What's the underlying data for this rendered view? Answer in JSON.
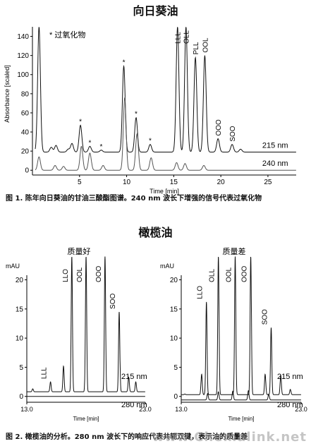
{
  "page": {
    "title1": "向日葵油",
    "caption1": "图 1.  陈年向日葵油的甘油三酸酯图谱。240 nm 波长下增强的信号代表过氧化物",
    "title2": "橄榄油",
    "caption2": "图 2.  橄榄油的分析。280 nm 波长下的响应代表共轭双键，表示油的质量差",
    "watermark": "www.Chemalink.net"
  },
  "chart_data": [
    {
      "type": "line",
      "ylabel": "Absorbance [scaled]",
      "xlabel": "Time [min]",
      "xlim": [
        0,
        28
      ],
      "ylim": [
        -5,
        150
      ],
      "xticks": [
        5,
        10,
        15,
        20,
        25
      ],
      "yticks": [
        0,
        20,
        40,
        60,
        80,
        100,
        120,
        140
      ],
      "legend_note": "* 过氧化物",
      "peaks": [
        {
          "label": "LLL",
          "x": 15.4
        },
        {
          "label": "OLL",
          "x": 16.3
        },
        {
          "label": "PLL",
          "x": 17.3
        },
        {
          "label": "OOL",
          "x": 18.3
        },
        {
          "label": "OOO",
          "x": 19.7
        },
        {
          "label": "SOO",
          "x": 21.2
        }
      ],
      "series": [
        {
          "name": "215 nm",
          "baseline": 19,
          "peaks_xy": [
            [
              0.7,
              150
            ],
            [
              2.0,
              24
            ],
            [
              2.5,
              26
            ],
            [
              3.8,
              22
            ],
            [
              4.2,
              28
            ],
            [
              5.1,
              47
            ],
            [
              6.1,
              25
            ],
            [
              7.3,
              21
            ],
            [
              9.7,
              109
            ],
            [
              11.0,
              55
            ],
            [
              12.5,
              27
            ],
            [
              15.4,
              150
            ],
            [
              16.3,
              150
            ],
            [
              17.3,
              118
            ],
            [
              18.3,
              120
            ],
            [
              19.7,
              33
            ],
            [
              21.2,
              27
            ],
            [
              22.1,
              22
            ]
          ]
        },
        {
          "name": "240 nm",
          "baseline": 0,
          "peaks_xy": [
            [
              0.7,
              14
            ],
            [
              2.4,
              5
            ],
            [
              3.3,
              4
            ],
            [
              5.2,
              25
            ],
            [
              6.1,
              18
            ],
            [
              7.5,
              5
            ],
            [
              9.8,
              76
            ],
            [
              11.1,
              38
            ],
            [
              12.6,
              13
            ],
            [
              15.3,
              8
            ],
            [
              16.2,
              7
            ],
            [
              18.2,
              5
            ]
          ]
        }
      ]
    },
    {
      "type": "line",
      "panel": "质量好",
      "ylabel": "mAU",
      "xlabel": "Time [min]",
      "xlim": [
        13.0,
        23.0
      ],
      "ylim": [
        -1,
        22
      ],
      "xticks": [
        13.0,
        23.0
      ],
      "yticks": [
        0,
        5,
        10,
        15,
        20
      ],
      "peaks": [
        {
          "label": "LLL",
          "x": 15.0
        },
        {
          "label": "LLO",
          "x": 16.8
        },
        {
          "label": "OOL",
          "x": 18.0
        },
        {
          "label": "OOO",
          "x": 19.6
        },
        {
          "label": "SOO",
          "x": 20.8
        }
      ],
      "series": [
        {
          "name": "215 nm",
          "baseline": 0.8,
          "peaks_xy": [
            [
              13.5,
              1.3
            ],
            [
              15.0,
              2.5
            ],
            [
              16.1,
              5.2
            ],
            [
              16.8,
              24
            ],
            [
              18.0,
              24
            ],
            [
              19.6,
              24
            ],
            [
              20.8,
              14.5
            ],
            [
              21.6,
              3.3
            ],
            [
              22.2,
              2.5
            ]
          ]
        },
        {
          "name": "280 nm",
          "baseline": 0.0,
          "peaks_xy": []
        }
      ]
    },
    {
      "type": "line",
      "panel": "质量差",
      "ylabel": "mAU",
      "xlabel": "Time [min]",
      "xlim": [
        13.0,
        23.0
      ],
      "ylim": [
        -1,
        22
      ],
      "xticks": [
        13.0,
        23.0
      ],
      "yticks": [
        0,
        5,
        10,
        15,
        20
      ],
      "peaks": [
        {
          "label": "LLO",
          "x": 15.1
        },
        {
          "label": "OLL",
          "x": 16.1
        },
        {
          "label": "OOL",
          "x": 17.5
        },
        {
          "label": "OOO",
          "x": 18.8
        },
        {
          "label": "SOO",
          "x": 20.5
        }
      ],
      "series": [
        {
          "name": "215 nm",
          "baseline": 0.3,
          "peaks_xy": [
            [
              13.3,
              0.4
            ],
            [
              14.7,
              3.8
            ],
            [
              15.1,
              16.2
            ],
            [
              16.1,
              24
            ],
            [
              17.5,
              24
            ],
            [
              18.8,
              24
            ],
            [
              20.0,
              3.8
            ],
            [
              20.5,
              11.8
            ],
            [
              21.3,
              3.6
            ],
            [
              22.1,
              1.2
            ]
          ]
        },
        {
          "name": "280 nm",
          "baseline": -0.6,
          "peaks_xy": [
            [
              15.2,
              0.5
            ],
            [
              16.1,
              0.8
            ],
            [
              17.3,
              0.9
            ],
            [
              18.6,
              1.0
            ],
            [
              20.3,
              0.4
            ]
          ]
        }
      ]
    }
  ]
}
